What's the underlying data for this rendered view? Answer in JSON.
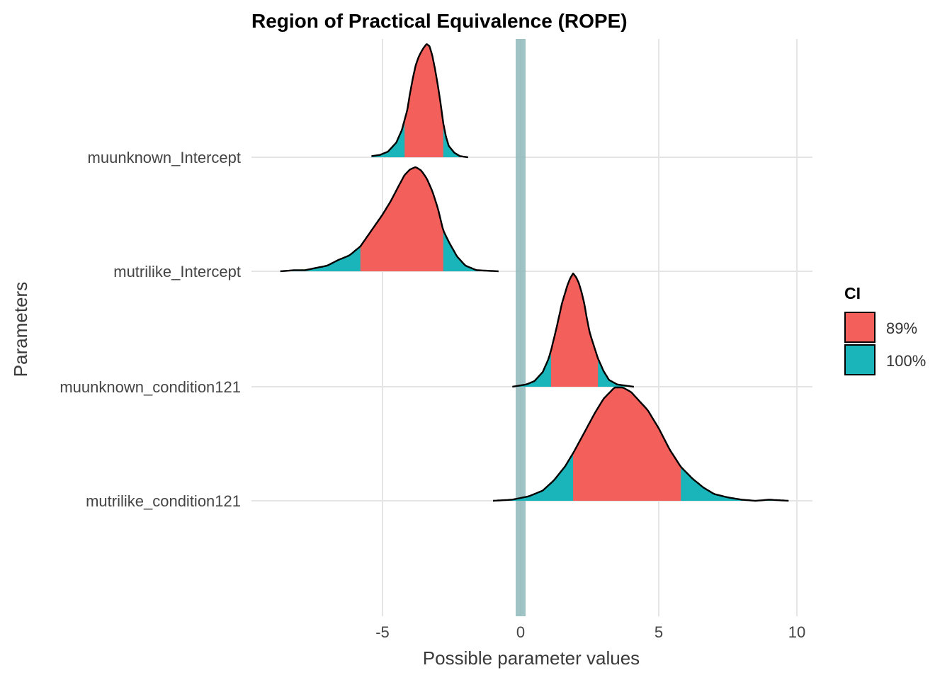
{
  "chart_data": {
    "type": "density-ridges",
    "title": "Region of Practical Equivalence (ROPE)",
    "xlabel": "Possible parameter values",
    "ylabel": "Parameters",
    "xlim": [
      -9.3,
      10.6
    ],
    "x_ticks": [
      -5,
      0,
      5,
      10
    ],
    "x_tick_labels": [
      "-5",
      "0",
      "5",
      "10"
    ],
    "grid": true,
    "rope": [
      -0.18,
      0.18
    ],
    "legend": {
      "title": "CI",
      "position": "right",
      "items": [
        {
          "label": "89%",
          "color": "#F35F5B"
        },
        {
          "label": "100%",
          "color": "#19B5BA"
        }
      ]
    },
    "colors": {
      "ci89": "#F35F5B",
      "ci100": "#19B5BA",
      "rope": "#8FB9BB",
      "outline": "#000000",
      "grid": "#E5E5E5"
    },
    "series": [
      {
        "name": "muunknown_Intercept",
        "ci89": [
          -4.2,
          -2.8
        ],
        "density": {
          "x": [
            -5.4,
            -5.1,
            -4.8,
            -4.5,
            -4.3,
            -4.1,
            -4.0,
            -3.9,
            -3.8,
            -3.7,
            -3.6,
            -3.5,
            -3.4,
            -3.3,
            -3.2,
            -3.1,
            -3.0,
            -2.9,
            -2.8,
            -2.7,
            -2.6,
            -2.4,
            -2.2,
            -1.9
          ],
          "y": [
            0.01,
            0.02,
            0.05,
            0.13,
            0.24,
            0.42,
            0.57,
            0.7,
            0.81,
            0.88,
            0.93,
            0.97,
            1.0,
            0.98,
            0.9,
            0.78,
            0.64,
            0.48,
            0.3,
            0.18,
            0.1,
            0.04,
            0.01,
            0.0
          ]
        }
      },
      {
        "name": "mutrilike_Intercept",
        "ci89": [
          -5.8,
          -2.8
        ],
        "density": {
          "x": [
            -8.7,
            -8.2,
            -7.8,
            -7.4,
            -7.0,
            -6.6,
            -6.2,
            -5.8,
            -5.4,
            -5.0,
            -4.7,
            -4.4,
            -4.2,
            -4.0,
            -3.8,
            -3.6,
            -3.4,
            -3.2,
            -3.0,
            -2.8,
            -2.6,
            -2.3,
            -2.0,
            -1.6,
            -0.8
          ],
          "y": [
            0.0,
            0.01,
            0.01,
            0.03,
            0.05,
            0.1,
            0.14,
            0.22,
            0.36,
            0.5,
            0.62,
            0.76,
            0.85,
            0.9,
            0.92,
            0.89,
            0.82,
            0.71,
            0.56,
            0.36,
            0.26,
            0.13,
            0.05,
            0.01,
            0.0
          ]
        }
      },
      {
        "name": "muunknown_condition121",
        "ci89": [
          1.1,
          2.8
        ],
        "density": {
          "x": [
            -0.3,
            0.2,
            0.5,
            0.8,
            1.0,
            1.1,
            1.3,
            1.5,
            1.7,
            1.8,
            1.9,
            2.0,
            2.1,
            2.2,
            2.3,
            2.4,
            2.5,
            2.6,
            2.8,
            3.0,
            3.2,
            3.5,
            3.8,
            4.1
          ],
          "y": [
            0.0,
            0.02,
            0.05,
            0.13,
            0.24,
            0.32,
            0.52,
            0.74,
            0.9,
            0.96,
            1.0,
            0.97,
            0.92,
            0.84,
            0.74,
            0.6,
            0.48,
            0.4,
            0.25,
            0.14,
            0.06,
            0.02,
            0.01,
            0.0
          ]
        }
      },
      {
        "name": "mutrilike_condition121",
        "ci89": [
          1.9,
          5.8
        ],
        "density": {
          "x": [
            -1.0,
            -0.3,
            0.3,
            0.8,
            1.2,
            1.6,
            1.9,
            2.3,
            2.7,
            3.0,
            3.4,
            3.7,
            4.0,
            4.3,
            4.6,
            5.0,
            5.4,
            5.8,
            6.2,
            6.6,
            7.0,
            7.5,
            8.0,
            8.5,
            9.0,
            9.7
          ],
          "y": [
            0.0,
            0.01,
            0.04,
            0.09,
            0.18,
            0.3,
            0.42,
            0.6,
            0.78,
            0.9,
            1.0,
            1.0,
            0.96,
            0.88,
            0.8,
            0.64,
            0.45,
            0.3,
            0.2,
            0.12,
            0.06,
            0.03,
            0.01,
            0.0,
            0.01,
            0.0
          ]
        }
      }
    ]
  }
}
